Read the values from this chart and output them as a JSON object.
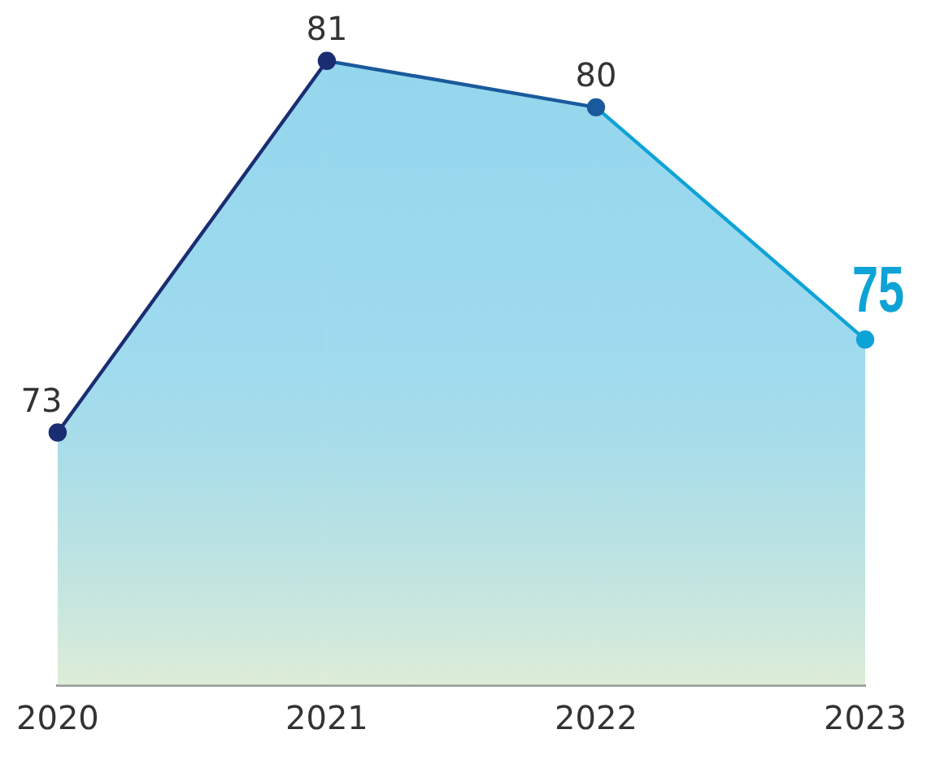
{
  "chart_data": {
    "type": "area",
    "categories": [
      "2020",
      "2021",
      "2022",
      "2023"
    ],
    "series": [
      {
        "colors": [
          "#1b2d72",
          "#1b2d72",
          "#1a5a9c",
          "#0ea3d6"
        ],
        "values": [
          73,
          81,
          80,
          75
        ]
      }
    ],
    "data_labels": true,
    "grid": false,
    "legend": false,
    "marker": "circle",
    "tick_labels": "x"
  }
}
